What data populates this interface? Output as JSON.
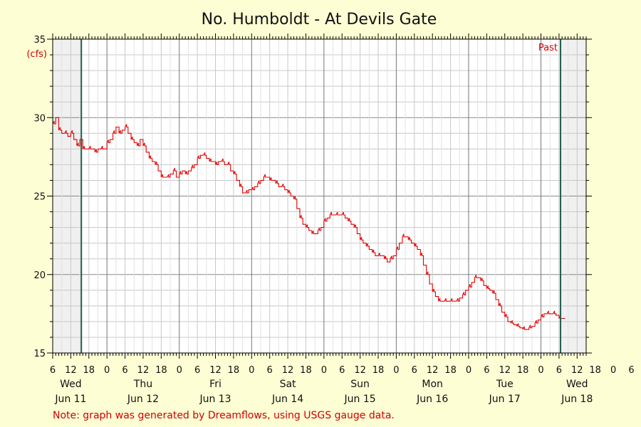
{
  "chart_data": {
    "type": "line",
    "title": "No. Humboldt - At Devils Gate",
    "unit_label": "(cfs)",
    "ylim": [
      15,
      35
    ],
    "y_ticks": [
      15,
      20,
      25,
      30,
      35
    ],
    "x_range_hours": [
      0,
      177
    ],
    "x_hour_ticks": [
      "6",
      "12",
      "18",
      "0",
      "6",
      "12",
      "18",
      "0",
      "6",
      "12",
      "18",
      "0",
      "6",
      "12",
      "18",
      "0",
      "6",
      "12",
      "18",
      "0",
      "6",
      "12",
      "18",
      "0",
      "6",
      "12",
      "18",
      "0",
      "6",
      "12",
      "18",
      "0",
      "6",
      "12",
      "18"
    ],
    "day_labels": [
      {
        "day": "Wed",
        "date": "Jun 11"
      },
      {
        "day": "Thu",
        "date": "Jun 12"
      },
      {
        "day": "Fri",
        "date": "Jun 13"
      },
      {
        "day": "Sat",
        "date": "Jun 14"
      },
      {
        "day": "Sun",
        "date": "Jun 15"
      },
      {
        "day": "Mon",
        "date": "Jun 16"
      },
      {
        "day": "Tue",
        "date": "Jun 17"
      },
      {
        "day": "Wed",
        "date": "Jun 18"
      }
    ],
    "past_label": "Past",
    "note": "Note: graph was generated by Dreamflows, using USGS gauge data.",
    "grid": true,
    "colors": {
      "line": "#e00000",
      "shade": "#f0f0f0",
      "marker": "#1f5f4f",
      "plot_bg": "#ffffff",
      "grid": "#c8c8c8"
    },
    "series": [
      {
        "x": [
          0,
          1,
          2,
          3,
          4,
          5,
          6,
          7,
          8,
          9,
          10,
          11,
          12,
          13,
          14,
          15,
          16,
          17,
          18,
          19,
          20,
          21,
          22,
          23,
          24,
          25,
          26,
          27,
          28,
          29,
          30,
          31,
          32,
          33,
          34,
          35,
          36,
          37,
          38,
          39,
          40,
          41,
          42,
          43,
          44,
          45,
          46,
          47,
          48,
          49,
          50,
          51,
          52,
          53,
          54,
          55,
          56,
          57,
          58,
          59,
          60,
          61,
          62,
          63,
          64,
          65,
          66,
          67,
          68,
          69,
          70,
          71,
          72,
          73,
          74,
          75,
          76,
          77,
          78,
          79,
          80,
          81,
          82,
          83,
          84,
          85,
          86,
          87,
          88,
          89,
          90,
          91,
          92,
          93,
          94,
          95,
          96,
          97,
          98,
          99,
          100,
          101,
          102,
          103,
          104,
          105,
          106,
          107,
          108,
          109,
          110,
          111,
          112,
          113,
          114,
          115,
          116,
          117,
          118,
          119,
          120,
          121,
          122,
          123,
          124,
          125,
          126,
          127,
          128,
          129,
          130,
          131,
          132,
          133,
          134,
          135,
          136,
          137,
          138,
          139,
          140,
          141,
          142,
          143,
          144,
          145,
          146,
          147,
          148,
          149,
          150,
          151,
          152,
          153,
          154,
          155,
          156,
          157,
          158,
          159,
          160,
          161,
          162,
          163,
          164,
          165,
          166,
          167,
          168,
          169,
          170
        ],
        "y": [
          29.6,
          30.0,
          29.2,
          29.0,
          29.0,
          28.8,
          29.0,
          28.6,
          28.2,
          28.6,
          28.0,
          28.0,
          28.0,
          28.0,
          27.8,
          28.0,
          28.0,
          28.0,
          28.4,
          28.6,
          29.0,
          29.4,
          29.0,
          29.2,
          29.4,
          29.0,
          28.6,
          28.4,
          28.2,
          28.6,
          28.2,
          27.8,
          27.4,
          27.2,
          27.0,
          26.6,
          26.2,
          26.2,
          26.2,
          26.4,
          26.6,
          26.2,
          26.4,
          26.6,
          26.4,
          26.6,
          26.8,
          27.0,
          27.4,
          27.6,
          27.6,
          27.4,
          27.2,
          27.2,
          27.0,
          27.2,
          27.2,
          27.0,
          27.0,
          26.6,
          26.4,
          26.0,
          25.6,
          25.2,
          25.2,
          25.4,
          25.4,
          25.6,
          25.8,
          26.0,
          26.2,
          26.2,
          26.0,
          26.0,
          25.8,
          25.6,
          25.6,
          25.4,
          25.2,
          25.0,
          24.8,
          24.2,
          23.6,
          23.2,
          23.0,
          22.8,
          22.6,
          22.6,
          22.8,
          23.0,
          23.4,
          23.6,
          23.8,
          23.8,
          23.8,
          23.8,
          23.8,
          23.6,
          23.4,
          23.2,
          23.0,
          22.6,
          22.2,
          22.0,
          21.8,
          21.6,
          21.4,
          21.2,
          21.2,
          21.2,
          21.0,
          20.8,
          21.0,
          21.2,
          21.6,
          22.0,
          22.4,
          22.4,
          22.2,
          22.0,
          21.8,
          21.6,
          21.2,
          20.6,
          20.0,
          19.4,
          18.9,
          18.6,
          18.3,
          18.3,
          18.3,
          18.3,
          18.3,
          18.3,
          18.3,
          18.5,
          18.7,
          19.0,
          19.2,
          19.5,
          19.8,
          19.8,
          19.6,
          19.3,
          19.1,
          19.0,
          18.8,
          18.4,
          18.0,
          17.6,
          17.3,
          17.0,
          16.9,
          16.8,
          16.7,
          16.6,
          16.5,
          16.5,
          16.6,
          16.7,
          16.9,
          17.1,
          17.3,
          17.5,
          17.5,
          17.5,
          17.5,
          17.4,
          17.2,
          17.2,
          17.2
        ]
      }
    ]
  }
}
